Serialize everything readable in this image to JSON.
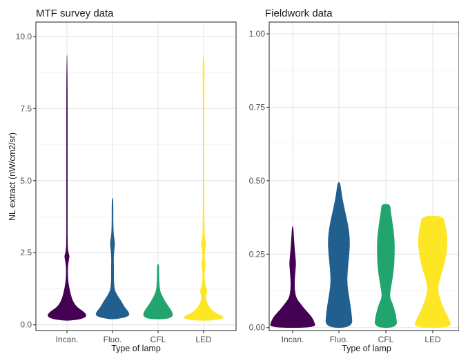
{
  "chart_data": [
    {
      "type": "violin",
      "title": "MTF survey data",
      "xlabel": "Type of lamp",
      "ylabel": "NL extract (nW/cm2/sr)",
      "ylim": [
        -0.2,
        10.5
      ],
      "yticks": [
        0.0,
        2.5,
        5.0,
        7.5,
        10.0
      ],
      "ytick_labels": [
        "0.0",
        "2.5",
        "5.0",
        "7.5",
        "10.0"
      ],
      "grid": true,
      "categories": [
        "Incan.",
        "Fluo.",
        "CFL",
        "LED"
      ],
      "series": [
        {
          "category": "Incan.",
          "color": "#440154",
          "min": 0.15,
          "max": 9.35,
          "profile": [
            [
              0.15,
              0.12
            ],
            [
              0.2,
              0.7
            ],
            [
              0.3,
              1.0
            ],
            [
              0.45,
              0.85
            ],
            [
              0.6,
              0.5
            ],
            [
              0.8,
              0.3
            ],
            [
              1.0,
              0.2
            ],
            [
              1.3,
              0.1
            ],
            [
              1.6,
              0.04
            ],
            [
              2.0,
              0.03
            ],
            [
              2.3,
              0.1
            ],
            [
              2.4,
              0.12
            ],
            [
              2.55,
              0.04
            ],
            [
              3.0,
              0.015
            ],
            [
              3.6,
              0.02
            ],
            [
              3.9,
              0.01
            ],
            [
              5.0,
              0.006
            ],
            [
              9.35,
              0.004
            ]
          ]
        },
        {
          "category": "Fluo.",
          "color": "#21608E",
          "min": 0.2,
          "max": 4.4,
          "profile": [
            [
              0.2,
              0.2
            ],
            [
              0.3,
              0.85
            ],
            [
              0.45,
              0.8
            ],
            [
              0.6,
              0.6
            ],
            [
              0.8,
              0.45
            ],
            [
              1.0,
              0.25
            ],
            [
              1.2,
              0.1
            ],
            [
              1.5,
              0.06
            ],
            [
              2.0,
              0.06
            ],
            [
              2.3,
              0.05
            ],
            [
              2.6,
              0.08
            ],
            [
              2.85,
              0.12
            ],
            [
              3.1,
              0.05
            ],
            [
              3.5,
              0.03
            ],
            [
              4.0,
              0.03
            ],
            [
              4.4,
              0.02
            ]
          ]
        },
        {
          "category": "CFL",
          "color": "#21A46E",
          "min": 0.2,
          "max": 2.1,
          "profile": [
            [
              0.2,
              0.45
            ],
            [
              0.3,
              0.75
            ],
            [
              0.45,
              0.7
            ],
            [
              0.6,
              0.55
            ],
            [
              0.8,
              0.35
            ],
            [
              1.0,
              0.2
            ],
            [
              1.2,
              0.08
            ],
            [
              1.5,
              0.05
            ],
            [
              1.8,
              0.04
            ],
            [
              2.1,
              0.04
            ]
          ]
        },
        {
          "category": "LED",
          "color": "#FDE725",
          "min": 0.15,
          "max": 9.3,
          "profile": [
            [
              0.15,
              0.4
            ],
            [
              0.22,
              1.0
            ],
            [
              0.3,
              0.95
            ],
            [
              0.4,
              0.6
            ],
            [
              0.55,
              0.35
            ],
            [
              0.7,
              0.2
            ],
            [
              0.9,
              0.1
            ],
            [
              1.05,
              0.12
            ],
            [
              1.2,
              0.18
            ],
            [
              1.35,
              0.08
            ],
            [
              1.6,
              0.04
            ],
            [
              1.9,
              0.05
            ],
            [
              2.1,
              0.1
            ],
            [
              2.3,
              0.04
            ],
            [
              2.6,
              0.06
            ],
            [
              2.8,
              0.13
            ],
            [
              3.0,
              0.05
            ],
            [
              3.5,
              0.03
            ],
            [
              5.0,
              0.01
            ],
            [
              8.0,
              0.01
            ],
            [
              9.3,
              0.04
            ]
          ]
        }
      ]
    },
    {
      "type": "violin",
      "title": "Fieldwork data",
      "xlabel": "Type of lamp",
      "ylabel": "",
      "ylim": [
        -0.01,
        1.04
      ],
      "yticks": [
        0.0,
        0.25,
        0.5,
        0.75,
        1.0
      ],
      "ytick_labels": [
        "0.00",
        "0.25",
        "0.50",
        "0.75",
        "1.00"
      ],
      "grid": true,
      "categories": [
        "Incan.",
        "Fluo.",
        "CFL",
        "LED"
      ],
      "series": [
        {
          "category": "Incan.",
          "color": "#440154",
          "min": 0.0,
          "max": 0.345,
          "profile": [
            [
              0.0,
              1.0
            ],
            [
              0.02,
              0.95
            ],
            [
              0.04,
              0.8
            ],
            [
              0.06,
              0.55
            ],
            [
              0.08,
              0.35
            ],
            [
              0.1,
              0.15
            ],
            [
              0.13,
              0.08
            ],
            [
              0.16,
              0.08
            ],
            [
              0.2,
              0.12
            ],
            [
              0.22,
              0.14
            ],
            [
              0.25,
              0.1
            ],
            [
              0.3,
              0.05
            ],
            [
              0.345,
              0.02
            ]
          ]
        },
        {
          "category": "Fluo.",
          "color": "#21608E",
          "min": 0.0,
          "max": 0.495,
          "profile": [
            [
              0.0,
              0.6
            ],
            [
              0.05,
              0.55
            ],
            [
              0.1,
              0.45
            ],
            [
              0.15,
              0.35
            ],
            [
              0.2,
              0.38
            ],
            [
              0.25,
              0.45
            ],
            [
              0.3,
              0.48
            ],
            [
              0.35,
              0.4
            ],
            [
              0.4,
              0.25
            ],
            [
              0.45,
              0.12
            ],
            [
              0.495,
              0.05
            ]
          ]
        },
        {
          "category": "CFL",
          "color": "#21A46E",
          "min": 0.0,
          "max": 0.42,
          "profile": [
            [
              0.0,
              0.5
            ],
            [
              0.04,
              0.45
            ],
            [
              0.08,
              0.3
            ],
            [
              0.1,
              0.18
            ],
            [
              0.12,
              0.18
            ],
            [
              0.15,
              0.25
            ],
            [
              0.2,
              0.35
            ],
            [
              0.25,
              0.38
            ],
            [
              0.3,
              0.38
            ],
            [
              0.35,
              0.3
            ],
            [
              0.4,
              0.2
            ],
            [
              0.42,
              0.18
            ]
          ]
        },
        {
          "category": "LED",
          "color": "#FDE725",
          "min": 0.0,
          "max": 0.38,
          "profile": [
            [
              0.0,
              0.85
            ],
            [
              0.03,
              0.7
            ],
            [
              0.06,
              0.5
            ],
            [
              0.1,
              0.3
            ],
            [
              0.13,
              0.22
            ],
            [
              0.16,
              0.28
            ],
            [
              0.2,
              0.45
            ],
            [
              0.25,
              0.6
            ],
            [
              0.3,
              0.65
            ],
            [
              0.35,
              0.55
            ],
            [
              0.38,
              0.45
            ]
          ]
        }
      ]
    }
  ]
}
